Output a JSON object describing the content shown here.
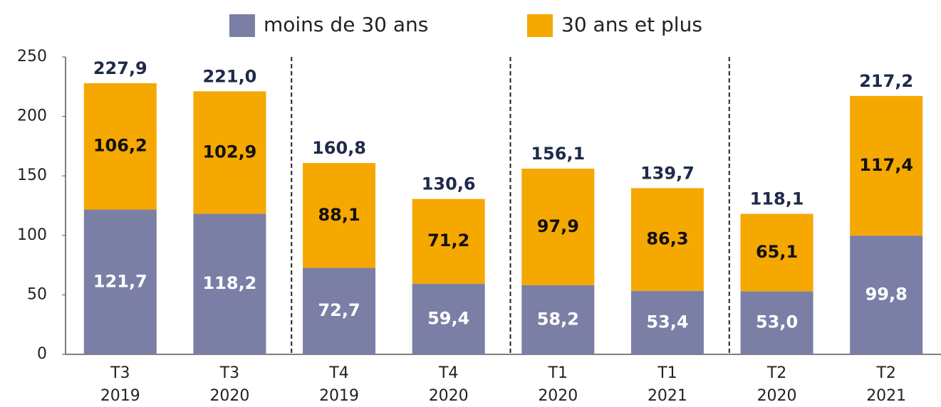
{
  "chart_data": {
    "type": "stacked-bar",
    "categories": [
      [
        "T3",
        "2019"
      ],
      [
        "T3",
        "2020"
      ],
      [
        "T4",
        "2019"
      ],
      [
        "T4",
        "2020"
      ],
      [
        "T1",
        "2020"
      ],
      [
        "T1",
        "2021"
      ],
      [
        "T2",
        "2020"
      ],
      [
        "T2",
        "2021"
      ]
    ],
    "series": [
      {
        "name": "moins de 30 ans",
        "color": "#7b7fa6",
        "values": [
          121.7,
          118.2,
          72.7,
          59.4,
          58.2,
          53.4,
          53.0,
          99.8
        ],
        "value_labels": [
          "121,7",
          "118,2",
          "72,7",
          "59,4",
          "58,2",
          "53,4",
          "53,0",
          "99,8"
        ]
      },
      {
        "name": "30 ans et plus",
        "color": "#f5a800",
        "values": [
          106.2,
          102.9,
          88.1,
          71.2,
          97.9,
          86.3,
          65.1,
          117.4
        ],
        "value_labels": [
          "106,2",
          "102,9",
          "88,1",
          "71,2",
          "97,9",
          "86,3",
          "65,1",
          "117,4"
        ]
      }
    ],
    "totals": {
      "values": [
        227.9,
        221.0,
        160.8,
        130.6,
        156.1,
        139.7,
        118.1,
        217.2
      ],
      "value_labels": [
        "227,9",
        "221,0",
        "160,8",
        "130,6",
        "156,1",
        "139,7",
        "118,1",
        "217,2"
      ]
    },
    "ylim": [
      0,
      250
    ],
    "yticks": [
      0,
      50,
      100,
      150,
      200,
      250
    ],
    "grid": false,
    "legend": "top"
  }
}
